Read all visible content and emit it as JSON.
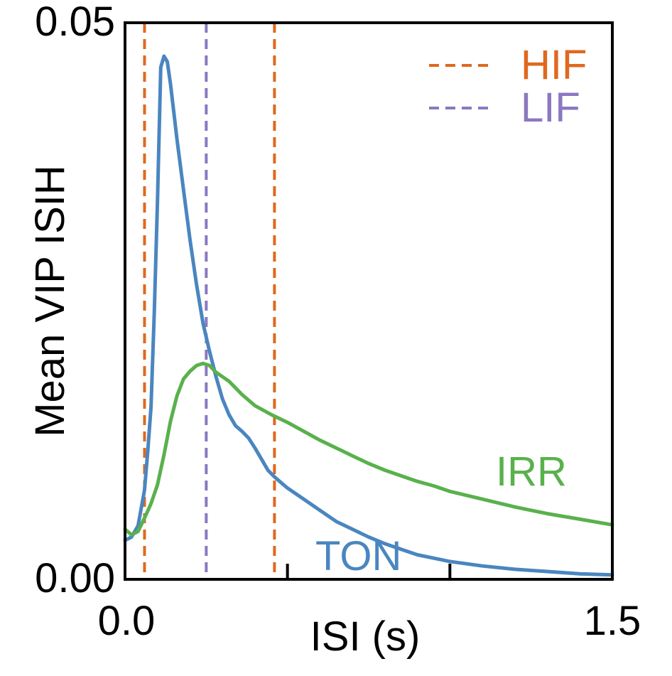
{
  "chart_data": {
    "type": "line",
    "title": "",
    "xlabel": "ISI (s)",
    "ylabel": "Mean VIP ISIH",
    "xlim": [
      0.0,
      1.5
    ],
    "ylim": [
      0.0,
      0.05
    ],
    "x_tick_labels": [
      "0.0",
      "1.5"
    ],
    "y_tick_labels": [
      "0.00",
      "0.05"
    ],
    "x_ticks": [
      0.0,
      0.5,
      1.0,
      1.5
    ],
    "grid": false,
    "legend_position": "top-right",
    "series": [
      {
        "name": "TON",
        "color": "#4a86c0",
        "x": [
          0.0,
          0.02,
          0.04,
          0.06,
          0.07,
          0.08,
          0.09,
          0.1,
          0.11,
          0.12,
          0.13,
          0.14,
          0.15,
          0.16,
          0.18,
          0.2,
          0.22,
          0.24,
          0.26,
          0.28,
          0.3,
          0.32,
          0.34,
          0.36,
          0.38,
          0.4,
          0.42,
          0.44,
          0.46,
          0.48,
          0.5,
          0.55,
          0.6,
          0.65,
          0.7,
          0.75,
          0.8,
          0.85,
          0.9,
          0.95,
          1.0,
          1.1,
          1.2,
          1.3,
          1.4,
          1.5
        ],
        "y": [
          0.0035,
          0.0038,
          0.0048,
          0.008,
          0.0115,
          0.0155,
          0.024,
          0.034,
          0.046,
          0.047,
          0.0465,
          0.0445,
          0.042,
          0.0395,
          0.035,
          0.0305,
          0.0265,
          0.023,
          0.0205,
          0.0182,
          0.0162,
          0.0148,
          0.0138,
          0.0133,
          0.0127,
          0.0118,
          0.0108,
          0.0098,
          0.0092,
          0.0087,
          0.0082,
          0.0072,
          0.0062,
          0.0052,
          0.0045,
          0.0038,
          0.0032,
          0.0027,
          0.0022,
          0.0019,
          0.0016,
          0.0012,
          0.0009,
          0.0007,
          0.0005,
          0.0004
        ]
      },
      {
        "name": "IRR",
        "color": "#59b14c",
        "x": [
          0.0,
          0.02,
          0.04,
          0.06,
          0.08,
          0.1,
          0.12,
          0.14,
          0.16,
          0.18,
          0.2,
          0.22,
          0.24,
          0.26,
          0.28,
          0.3,
          0.32,
          0.34,
          0.36,
          0.38,
          0.4,
          0.45,
          0.5,
          0.55,
          0.6,
          0.65,
          0.7,
          0.75,
          0.8,
          0.85,
          0.9,
          0.95,
          1.0,
          1.1,
          1.2,
          1.3,
          1.4,
          1.5
        ],
        "y": [
          0.0045,
          0.004,
          0.0043,
          0.0055,
          0.0068,
          0.0085,
          0.0112,
          0.0142,
          0.0165,
          0.018,
          0.0187,
          0.0192,
          0.0194,
          0.0192,
          0.0186,
          0.0182,
          0.0178,
          0.0172,
          0.0166,
          0.0161,
          0.0156,
          0.0148,
          0.0141,
          0.0133,
          0.0125,
          0.0118,
          0.0111,
          0.0104,
          0.0098,
          0.0093,
          0.0088,
          0.0084,
          0.0079,
          0.0072,
          0.0065,
          0.0059,
          0.0054,
          0.0049
        ]
      }
    ],
    "series_labels": [
      "IRR",
      "TON"
    ],
    "reference_lines": [
      {
        "x": 0.06,
        "name": "HIF",
        "color": "#e0681e",
        "style": "dashed"
      },
      {
        "x": 0.46,
        "name": "HIF",
        "color": "#e0681e",
        "style": "dashed"
      },
      {
        "x": 0.25,
        "name": "LIF",
        "color": "#8b78c0",
        "style": "dashed"
      }
    ],
    "legend": [
      {
        "label": "HIF",
        "color": "#e0681e",
        "style": "dashed"
      },
      {
        "label": "LIF",
        "color": "#8b78c0",
        "style": "dashed"
      }
    ]
  }
}
